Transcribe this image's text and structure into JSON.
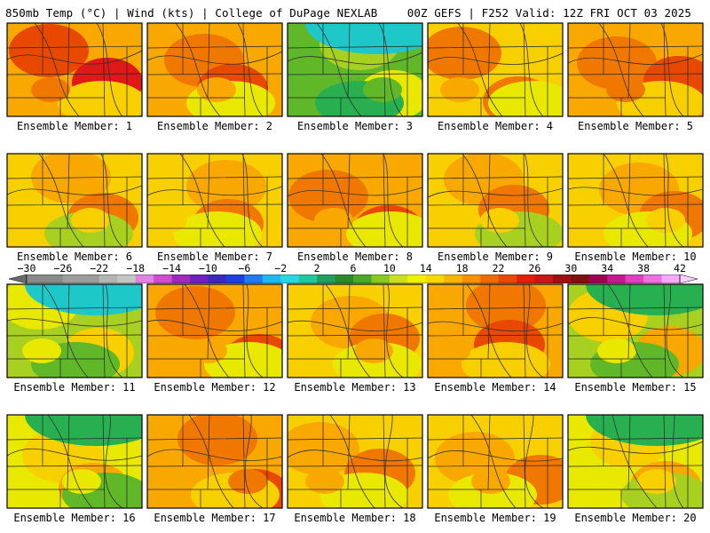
{
  "header": {
    "left": "850mb Temp (°C) | Wind (kts) | College of DuPage NEXLAB",
    "right": "00Z GEFS | F252 Valid: 12Z FRI OCT 03 2025"
  },
  "map": {
    "title": "850mb Temp (°C)",
    "variable": "temperature_850mb",
    "unit": "°C",
    "member_label_prefix": "Ensemble Member:",
    "members": [
      {
        "id": 1,
        "label": "Ensemble Member: 1",
        "warmth": 0.68
      },
      {
        "id": 2,
        "label": "Ensemble Member: 2",
        "warmth": 0.6
      },
      {
        "id": 3,
        "label": "Ensemble Member: 3",
        "warmth": 0.22
      },
      {
        "id": 4,
        "label": "Ensemble Member: 4",
        "warmth": 0.58
      },
      {
        "id": 5,
        "label": "Ensemble Member: 5",
        "warmth": 0.66
      },
      {
        "id": 6,
        "label": "Ensemble Member: 6",
        "warmth": 0.5
      },
      {
        "id": 7,
        "label": "Ensemble Member: 7",
        "warmth": 0.52
      },
      {
        "id": 8,
        "label": "Ensemble Member: 8",
        "warmth": 0.6
      },
      {
        "id": 9,
        "label": "Ensemble Member: 9",
        "warmth": 0.5
      },
      {
        "id": 10,
        "label": "Ensemble Member: 10",
        "warmth": 0.52
      },
      {
        "id": 11,
        "label": "Ensemble Member: 11",
        "warmth": 0.35
      },
      {
        "id": 12,
        "label": "Ensemble Member: 12",
        "warmth": 0.6
      },
      {
        "id": 13,
        "label": "Ensemble Member: 13",
        "warmth": 0.54
      },
      {
        "id": 14,
        "label": "Ensemble Member: 14",
        "warmth": 0.62
      },
      {
        "id": 15,
        "label": "Ensemble Member: 15",
        "warmth": 0.38
      },
      {
        "id": 16,
        "label": "Ensemble Member: 16",
        "warmth": 0.4
      },
      {
        "id": 17,
        "label": "Ensemble Member: 17",
        "warmth": 0.66
      },
      {
        "id": 18,
        "label": "Ensemble Member: 18",
        "warmth": 0.56
      },
      {
        "id": 19,
        "label": "Ensemble Member: 19",
        "warmth": 0.54
      },
      {
        "id": 20,
        "label": "Ensemble Member: 20",
        "warmth": 0.44
      }
    ]
  },
  "colorbar": {
    "labels": [
      "−30",
      "−26",
      "−22",
      "−18",
      "−14",
      "−10",
      "−6",
      "−2",
      "2",
      "6",
      "10",
      "14",
      "18",
      "22",
      "26",
      "30",
      "34",
      "38",
      "42"
    ],
    "colors": [
      "#8a8a8a",
      "#8a8a8a",
      "#9c9c9c",
      "#9c9c9c",
      "#b4b4b4",
      "#c4c4c4",
      "#e084e0",
      "#d04cd0",
      "#a028c0",
      "#7020c0",
      "#3a28c0",
      "#1e40e0",
      "#1e7cf0",
      "#20b8f0",
      "#28d8e0",
      "#20c8a0",
      "#20a060",
      "#2a8a2a",
      "#48a828",
      "#88c820",
      "#c8e020",
      "#f0f000",
      "#f8d800",
      "#f8b400",
      "#f89000",
      "#f06c00",
      "#e84800",
      "#e02000",
      "#c81818",
      "#a01010",
      "#801010",
      "#a00050",
      "#c81890",
      "#e040c0",
      "#f070e0",
      "#f8a8f8"
    ]
  }
}
